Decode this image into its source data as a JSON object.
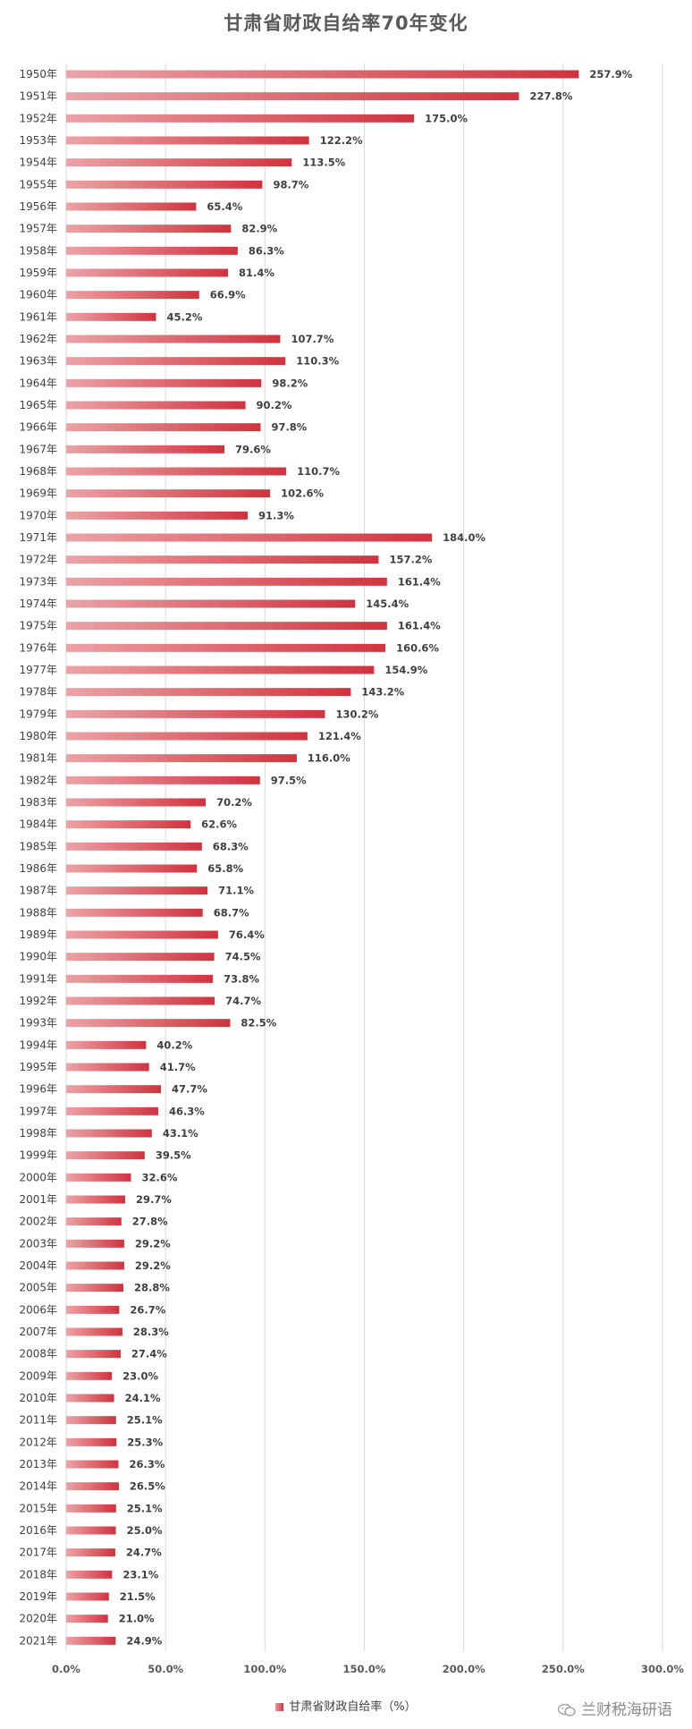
{
  "chart_data": {
    "type": "bar",
    "orientation": "horizontal",
    "title": "甘肃省财政自给率70年变化",
    "categories": [
      "1950年",
      "1951年",
      "1952年",
      "1953年",
      "1954年",
      "1955年",
      "1956年",
      "1957年",
      "1958年",
      "1959年",
      "1960年",
      "1961年",
      "1962年",
      "1963年",
      "1964年",
      "1965年",
      "1966年",
      "1967年",
      "1968年",
      "1969年",
      "1970年",
      "1971年",
      "1972年",
      "1973年",
      "1974年",
      "1975年",
      "1976年",
      "1977年",
      "1978年",
      "1979年",
      "1980年",
      "1981年",
      "1982年",
      "1983年",
      "1984年",
      "1985年",
      "1986年",
      "1987年",
      "1988年",
      "1989年",
      "1990年",
      "1991年",
      "1992年",
      "1993年",
      "1994年",
      "1995年",
      "1996年",
      "1997年",
      "1998年",
      "1999年",
      "2000年",
      "2001年",
      "2002年",
      "2003年",
      "2004年",
      "2005年",
      "2006年",
      "2007年",
      "2008年",
      "2009年",
      "2010年",
      "2011年",
      "2012年",
      "2013年",
      "2014年",
      "2015年",
      "2016年",
      "2017年",
      "2018年",
      "2019年",
      "2020年",
      "2021年"
    ],
    "series": [
      {
        "name": "甘肃省财政自给率（%）",
        "values": [
          257.9,
          227.8,
          175.0,
          122.2,
          113.5,
          98.7,
          65.4,
          82.9,
          86.3,
          81.4,
          66.9,
          45.2,
          107.7,
          110.3,
          98.2,
          90.2,
          97.8,
          79.6,
          110.7,
          102.6,
          91.3,
          184.0,
          157.2,
          161.4,
          145.4,
          161.4,
          160.6,
          154.9,
          143.2,
          130.2,
          121.4,
          116.0,
          97.5,
          70.2,
          62.6,
          68.3,
          65.8,
          71.1,
          68.7,
          76.4,
          74.5,
          73.8,
          74.7,
          82.5,
          40.2,
          41.7,
          47.7,
          46.3,
          43.1,
          39.5,
          32.6,
          29.7,
          27.8,
          29.2,
          29.2,
          28.8,
          26.7,
          28.3,
          27.4,
          23.0,
          24.1,
          25.1,
          25.3,
          26.3,
          26.5,
          25.1,
          25.0,
          24.7,
          23.1,
          21.5,
          21.0,
          24.9
        ],
        "data_labels": [
          "257.9%",
          "227.8%",
          "175.0%",
          "122.2%",
          "113.5%",
          "98.7%",
          "65.4%",
          "82.9%",
          "86.3%",
          "81.4%",
          "66.9%",
          "45.2%",
          "107.7%",
          "110.3%",
          "98.2%",
          "90.2%",
          "97.8%",
          "79.6%",
          "110.7%",
          "102.6%",
          "91.3%",
          "184.0%",
          "157.2%",
          "161.4%",
          "145.4%",
          "161.4%",
          "160.6%",
          "154.9%",
          "143.2%",
          "130.2%",
          "121.4%",
          "116.0%",
          "97.5%",
          "70.2%",
          "62.6%",
          "68.3%",
          "65.8%",
          "71.1%",
          "68.7%",
          "76.4%",
          "74.5%",
          "73.8%",
          "74.7%",
          "82.5%",
          "40.2%",
          "41.7%",
          "47.7%",
          "46.3%",
          "43.1%",
          "39.5%",
          "32.6%",
          "29.7%",
          "27.8%",
          "29.2%",
          "29.2%",
          "28.8%",
          "26.7%",
          "28.3%",
          "27.4%",
          "23.0%",
          "24.1%",
          "25.1%",
          "25.3%",
          "26.3%",
          "26.5%",
          "25.1%",
          "25.0%",
          "24.7%",
          "23.1%",
          "21.5%",
          "21.0%",
          "24.9%"
        ],
        "colors": {
          "gradient_start": "#eba3a6",
          "gradient_end": "#d0333e"
        }
      }
    ],
    "xlim": [
      0,
      300
    ],
    "x_ticks": [
      0,
      50,
      100,
      150,
      200,
      250,
      300
    ],
    "x_tick_labels": [
      "0.0%",
      "50.0%",
      "100.0%",
      "150.0%",
      "200.0%",
      "250.0%",
      "300.0%"
    ],
    "grid": "vertical",
    "legend": {
      "position": "bottom",
      "label": "甘肃省财政自给率（%）"
    }
  },
  "watermark": {
    "text": "兰财税海研语",
    "icon": "wechat-icon"
  },
  "colors": {
    "grid": "#d9d9d9",
    "axis_text": "#595959",
    "label_text": "#404040"
  }
}
